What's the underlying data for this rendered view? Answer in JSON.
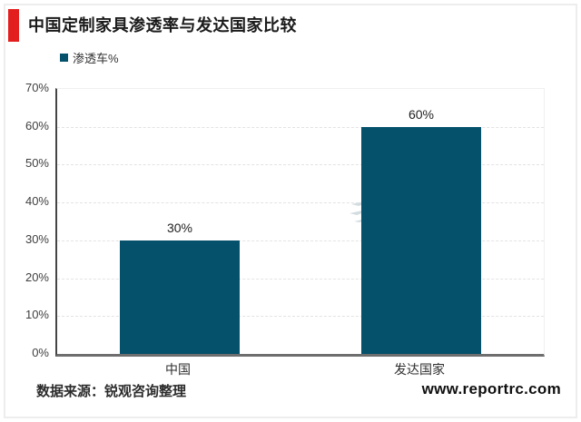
{
  "header": {
    "title": "中国定制家具渗透率与发达国家比较",
    "accent_color": "#e31e1e"
  },
  "legend": {
    "label": "渗透车%",
    "marker_color": "#05506b"
  },
  "chart_data": {
    "type": "bar",
    "title": "中国定制家具渗透率与发达国家比较",
    "categories": [
      "中国",
      "发达国家"
    ],
    "series": [
      {
        "name": "渗透车%",
        "values": [
          30,
          60
        ]
      }
    ],
    "value_labels": [
      "30%",
      "60%"
    ],
    "ylim": [
      0,
      70
    ],
    "ytick_values": [
      0,
      10,
      20,
      30,
      40,
      50,
      60,
      70
    ],
    "ytick_labels": [
      "0%",
      "10%",
      "20%",
      "30%",
      "40%",
      "50%",
      "60%",
      "70%"
    ],
    "grid": "horizontal-dashed",
    "legend_position": "top-left",
    "bar_color": "#05506b"
  },
  "footer": {
    "source": "数据来源：锐观咨询整理",
    "website": "www.reportrc.com"
  }
}
